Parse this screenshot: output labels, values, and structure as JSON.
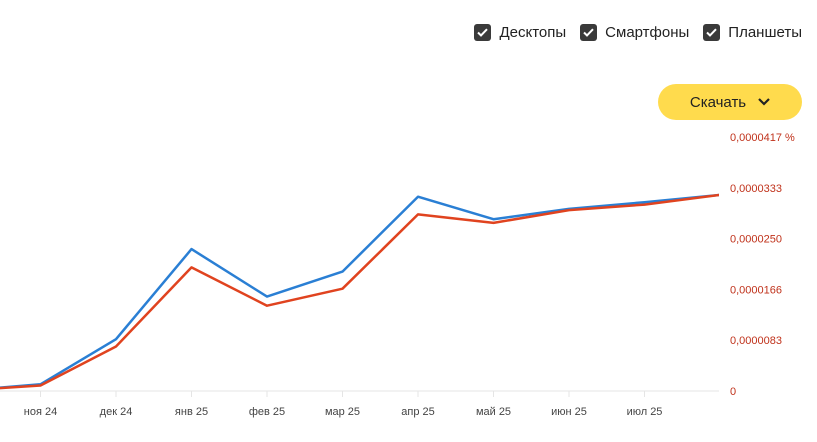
{
  "filters": [
    {
      "label": "Десктопы",
      "checked": true
    },
    {
      "label": "Смартфоны",
      "checked": true
    },
    {
      "label": "Планшеты",
      "checked": true
    }
  ],
  "download": {
    "label": "Скачать"
  },
  "colors": {
    "series_1": "#2a7fd4",
    "series_2": "#e0431f",
    "axis_text": "#c0321b",
    "grid": "#e5e5e5"
  },
  "chart_data": {
    "type": "line",
    "x": [
      "",
      "ноя 24",
      "дек 24",
      "янв 25",
      "фев 25",
      "мар 25",
      "апр 25",
      "май 25",
      "июн 25",
      "июл 25",
      ""
    ],
    "y_ticks": [
      "0",
      "0,0000083",
      "0,0000166",
      "0,0000250",
      "0,0000333",
      "0,0000417 %"
    ],
    "ylim": [
      0,
      4.17e-05
    ],
    "series": [
      {
        "color": "#2a7fd4",
        "values": [
          1e-07,
          1.1e-06,
          8.5e-06,
          2.33e-05,
          1.55e-05,
          1.96e-05,
          3.19e-05,
          2.82e-05,
          2.99e-05,
          3.1e-05,
          3.22e-05
        ]
      },
      {
        "color": "#e0431f",
        "values": [
          1e-07,
          9e-07,
          7.3e-06,
          2.03e-05,
          1.4e-05,
          1.68e-05,
          2.9e-05,
          2.76e-05,
          2.97e-05,
          3.06e-05,
          3.22e-05
        ]
      }
    ]
  }
}
